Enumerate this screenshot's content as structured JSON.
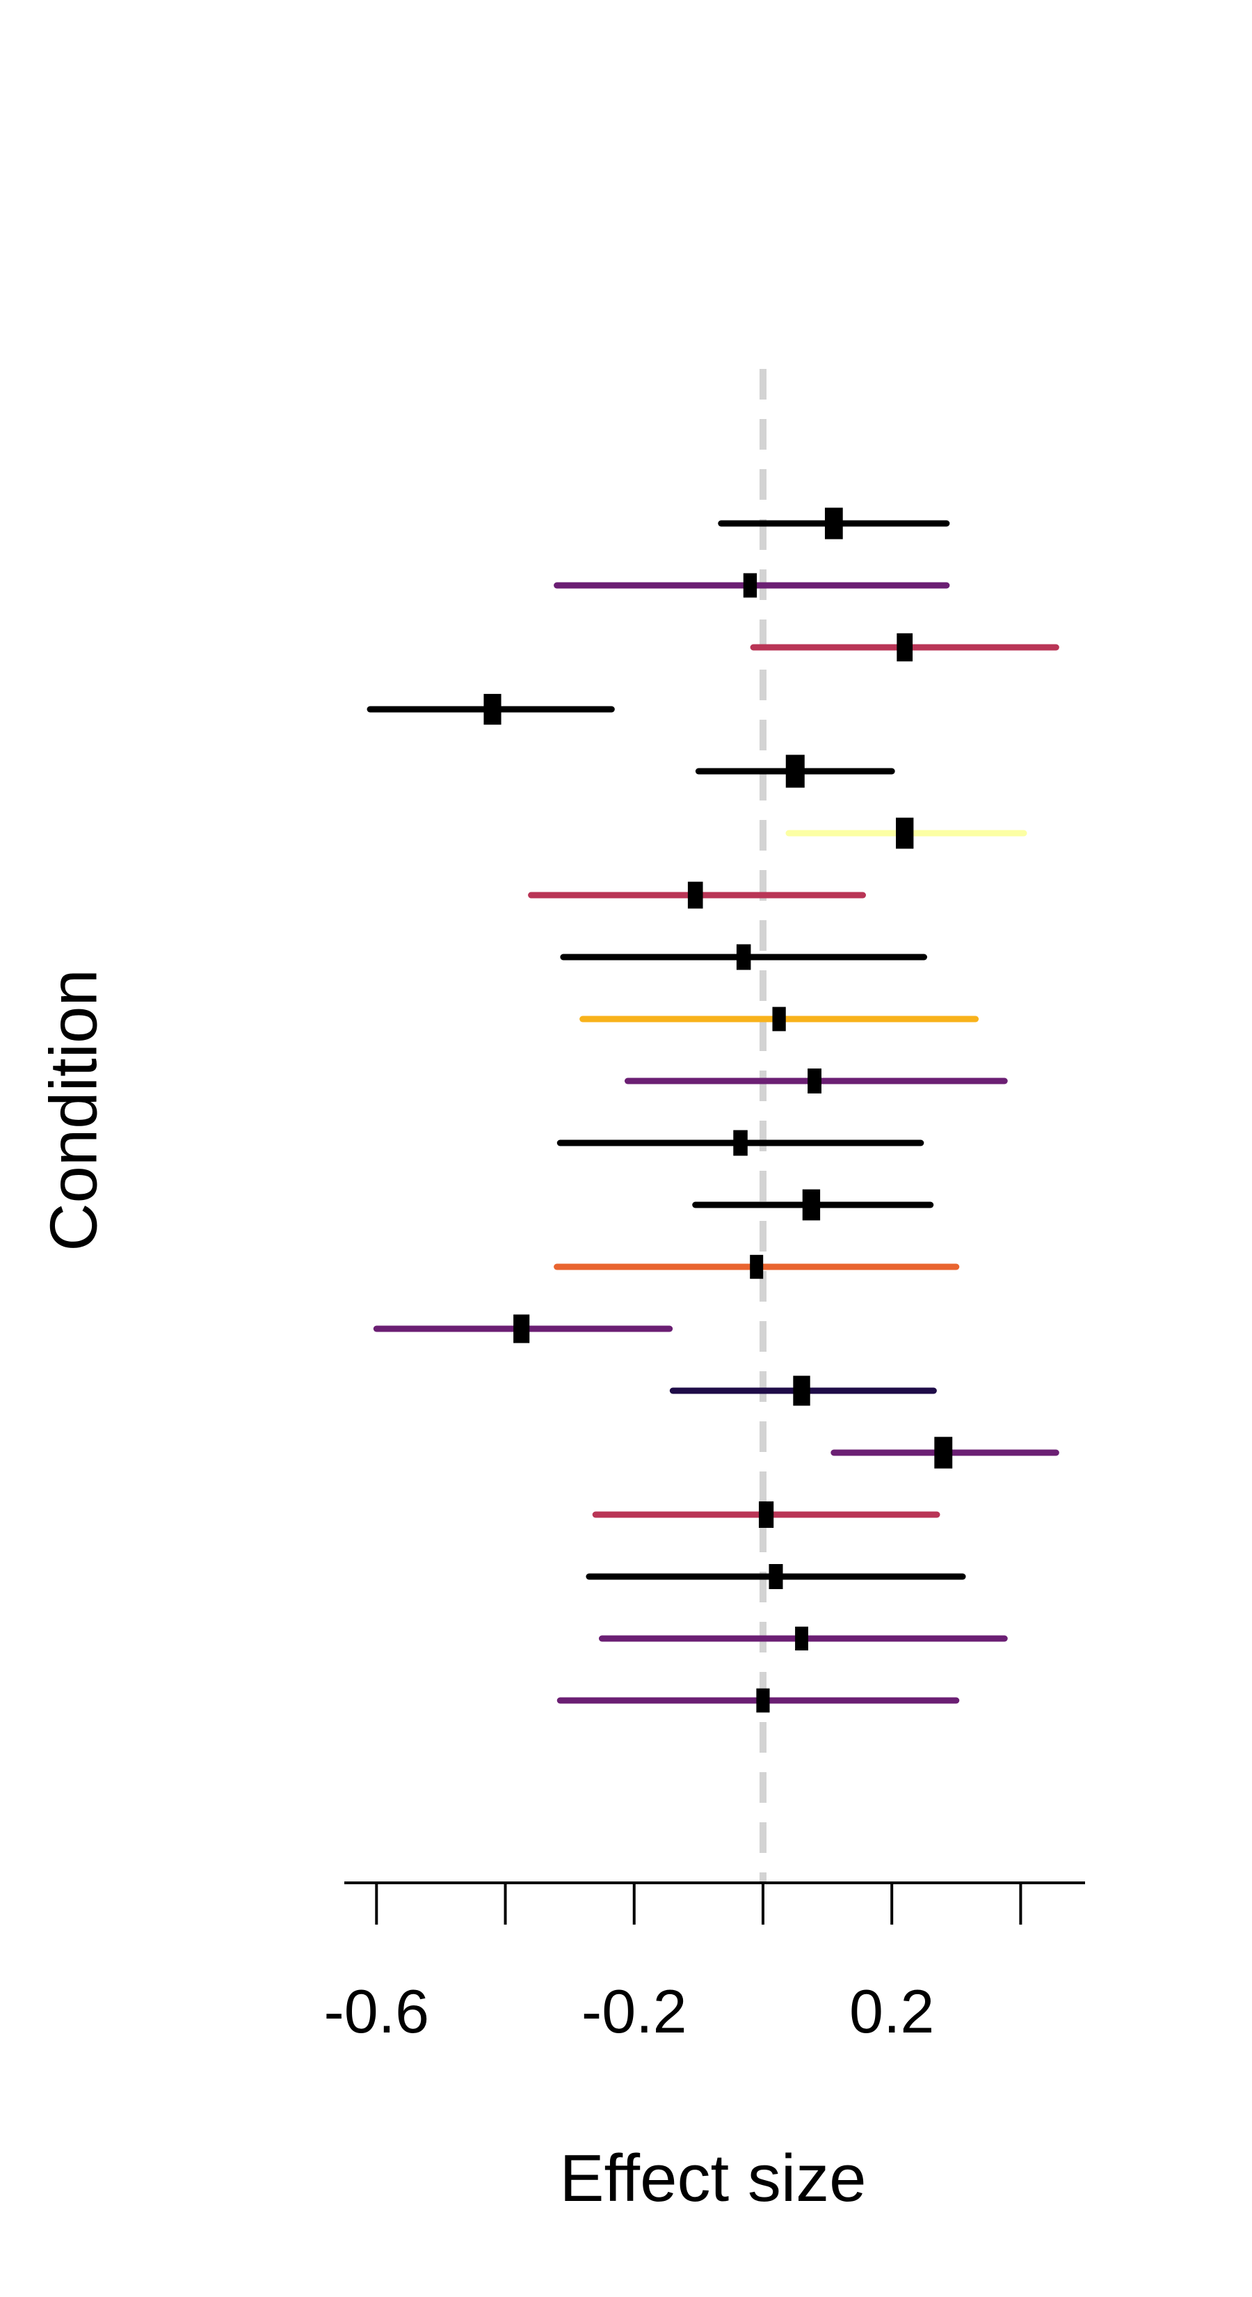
{
  "chart_data": {
    "type": "forest",
    "xlabel": "Effect size",
    "ylabel": "Condition",
    "xlim": [
      -0.65,
      0.5
    ],
    "x_ticks": [
      -0.6,
      -0.4,
      -0.2,
      0.0,
      0.2,
      0.4
    ],
    "x_tick_labels": [
      "-0.6",
      "",
      "-0.2",
      "",
      "0.2",
      ""
    ],
    "reference_line": 0,
    "grid": false,
    "legend": "none",
    "rows": [
      {
        "estimate": 0.11,
        "lower": -0.065,
        "upper": 0.285,
        "color": "#000000"
      },
      {
        "estimate": -0.02,
        "lower": -0.32,
        "upper": 0.285,
        "color": "#6B1F73"
      },
      {
        "estimate": 0.22,
        "lower": -0.015,
        "upper": 0.455,
        "color": "#B93556"
      },
      {
        "estimate": -0.42,
        "lower": -0.61,
        "upper": -0.235,
        "color": "#000000"
      },
      {
        "estimate": 0.05,
        "lower": -0.1,
        "upper": 0.2,
        "color": "#000000"
      },
      {
        "estimate": 0.22,
        "lower": 0.04,
        "upper": 0.405,
        "color": "#FCFFA4"
      },
      {
        "estimate": -0.105,
        "lower": -0.36,
        "upper": 0.155,
        "color": "#B93556"
      },
      {
        "estimate": -0.03,
        "lower": -0.31,
        "upper": 0.25,
        "color": "#000000"
      },
      {
        "estimate": 0.025,
        "lower": -0.28,
        "upper": 0.33,
        "color": "#F8B21B"
      },
      {
        "estimate": 0.08,
        "lower": -0.21,
        "upper": 0.375,
        "color": "#6B1F73"
      },
      {
        "estimate": -0.035,
        "lower": -0.315,
        "upper": 0.245,
        "color": "#000000"
      },
      {
        "estimate": 0.075,
        "lower": -0.105,
        "upper": 0.26,
        "color": "#000000"
      },
      {
        "estimate": -0.01,
        "lower": -0.32,
        "upper": 0.3,
        "color": "#E9642F"
      },
      {
        "estimate": -0.375,
        "lower": -0.6,
        "upper": -0.145,
        "color": "#6B1F73"
      },
      {
        "estimate": 0.06,
        "lower": -0.14,
        "upper": 0.265,
        "color": "#1F0C48"
      },
      {
        "estimate": 0.28,
        "lower": 0.11,
        "upper": 0.455,
        "color": "#6B1F73"
      },
      {
        "estimate": 0.005,
        "lower": -0.26,
        "upper": 0.27,
        "color": "#B93556"
      },
      {
        "estimate": 0.02,
        "lower": -0.27,
        "upper": 0.31,
        "color": "#000000"
      },
      {
        "estimate": 0.06,
        "lower": -0.25,
        "upper": 0.375,
        "color": "#6B1F73"
      },
      {
        "estimate": 0.0,
        "lower": -0.315,
        "upper": 0.3,
        "color": "#6B1F73"
      }
    ]
  }
}
